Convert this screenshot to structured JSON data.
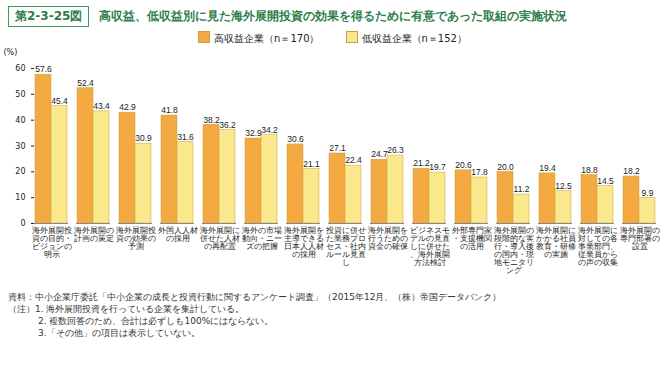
{
  "chart_data": {
    "type": "bar",
    "figure_label": "第2-3-25図",
    "title": "高収益、低収益別に見た海外展開投資の効果を得るために有意であった取組の実施状況",
    "y_label": "(%)",
    "categories": [
      "海外展開投資の目的・ビジョンの明示",
      "海外展開の計画の策定",
      "海外展開投資の効果の予測",
      "外国人人材の採用",
      "海外展開に併せた人材の再配置",
      "海外の市場動向・ニーズの把握",
      "海外展開を主導できる日本人人材の採用",
      "投資に併せた業務プロセス・社内ルール見直し",
      "海外展開を行うための資金の確保",
      "ビジネスモデルの見直しに併せた、海外展開方法検討",
      "外部専門家・支援機関の活用",
      "海外展開の段階的な実行・導入後の国内・現地モニタリング",
      "海外展開にかかる社員教育・研修の実施",
      "海外展開に対しての各事業部門、従業員からの声の収集",
      "海外展開の専門部署の設置"
    ],
    "series": [
      {
        "name": "高収益企業（n＝170）",
        "color": "#f4a941",
        "values": [
          57.6,
          52.4,
          42.9,
          41.8,
          38.2,
          32.9,
          30.6,
          27.1,
          24.7,
          21.2,
          20.6,
          20.0,
          19.4,
          18.8,
          18.2
        ],
        "value_labels": [
          "57.6",
          "52.4",
          "42.9",
          "41.8",
          "38.2",
          "32.9",
          "30.6",
          "27.1",
          "24.7",
          "21.2",
          "20.6",
          "20.0",
          "19.4",
          "18.8",
          "18.2"
        ]
      },
      {
        "name": "低収益企業（n＝152）",
        "color": "#fbe88c",
        "values": [
          45.4,
          43.4,
          30.9,
          31.6,
          36.2,
          34.2,
          21.1,
          22.4,
          26.3,
          19.7,
          17.8,
          11.2,
          12.5,
          14.5,
          9.9
        ],
        "value_labels": [
          "45.4",
          "43.4",
          "30.9",
          "31.6",
          "36.2",
          "34.2",
          "21.1",
          "22.4",
          "26.3",
          "19.7",
          "17.8",
          "11.2",
          "12.5",
          "14.5",
          "9.9"
        ]
      }
    ],
    "ylim": [
      0,
      60
    ],
    "yticks": [
      0,
      10,
      20,
      30,
      40,
      50,
      60
    ],
    "grid": false,
    "legend": "top",
    "data_labels": true,
    "notes": [
      "資料：中小企業庁委託「中小企業の成長と投資行動に関するアンケート調査」（2015年12月、（株）帝国データバンク）",
      "（注）1. 海外展開投資を行っている企業を集計している。",
      "2. 複数回答のため、合計は必ずしも100%にはならない。",
      "3.「その他」の項目は表示していない。"
    ]
  }
}
